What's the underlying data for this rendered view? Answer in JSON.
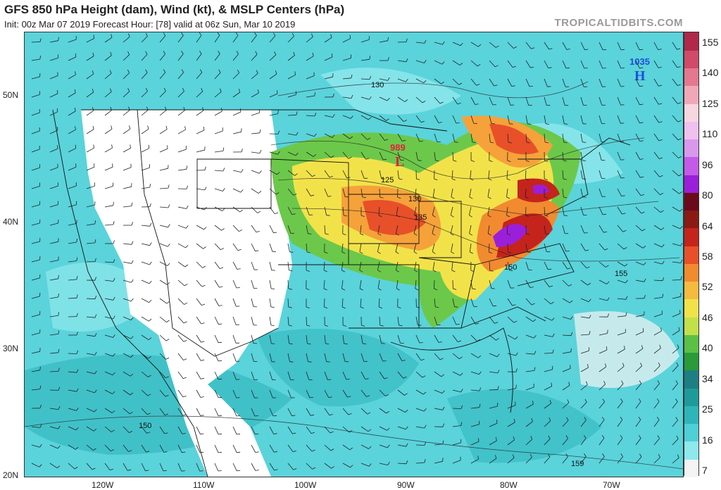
{
  "header": {
    "title": "GFS 850 hPa Height (dam), Wind (kt), & MSLP Centers (hPa)",
    "subtitle": "Init: 00z Mar 07 2019   Forecast Hour: [78]   valid at 06z Sun, Mar 10 2019",
    "brand": "TROPICALTIDBITS.COM"
  },
  "map": {
    "lat_labels": [
      "50N",
      "40N",
      "30N",
      "20N"
    ],
    "lon_labels": [
      "120W",
      "110W",
      "100W",
      "90W",
      "80W",
      "70W"
    ],
    "contour_labels": [
      "130",
      "125",
      "130",
      "135",
      "150",
      "155",
      "150",
      "159"
    ],
    "pressure_centers": {
      "low": {
        "value": "989",
        "letter": "L"
      },
      "high": {
        "value": "1035",
        "letter": "H"
      }
    }
  },
  "colorbar": {
    "labels": [
      "155",
      "140",
      "125",
      "110",
      "96",
      "80",
      "64",
      "58",
      "52",
      "46",
      "40",
      "34",
      "25",
      "16",
      "7"
    ],
    "colors": [
      "#f4f4f4",
      "#8ee8ec",
      "#4fcfd6",
      "#2fb5b9",
      "#1f9a9a",
      "#1e7f82",
      "#2a9a3a",
      "#5cc046",
      "#c2e04a",
      "#f2e24a",
      "#f5bb3f",
      "#f28a30",
      "#e8502a",
      "#c4241c",
      "#8a1a14",
      "#6a0a1a",
      "#9b1fd9",
      "#c45ae8",
      "#d998ec",
      "#f0c0ee",
      "#f7d6e0",
      "#f0a8b8",
      "#e47890",
      "#d04a6a",
      "#b0284a"
    ]
  }
}
